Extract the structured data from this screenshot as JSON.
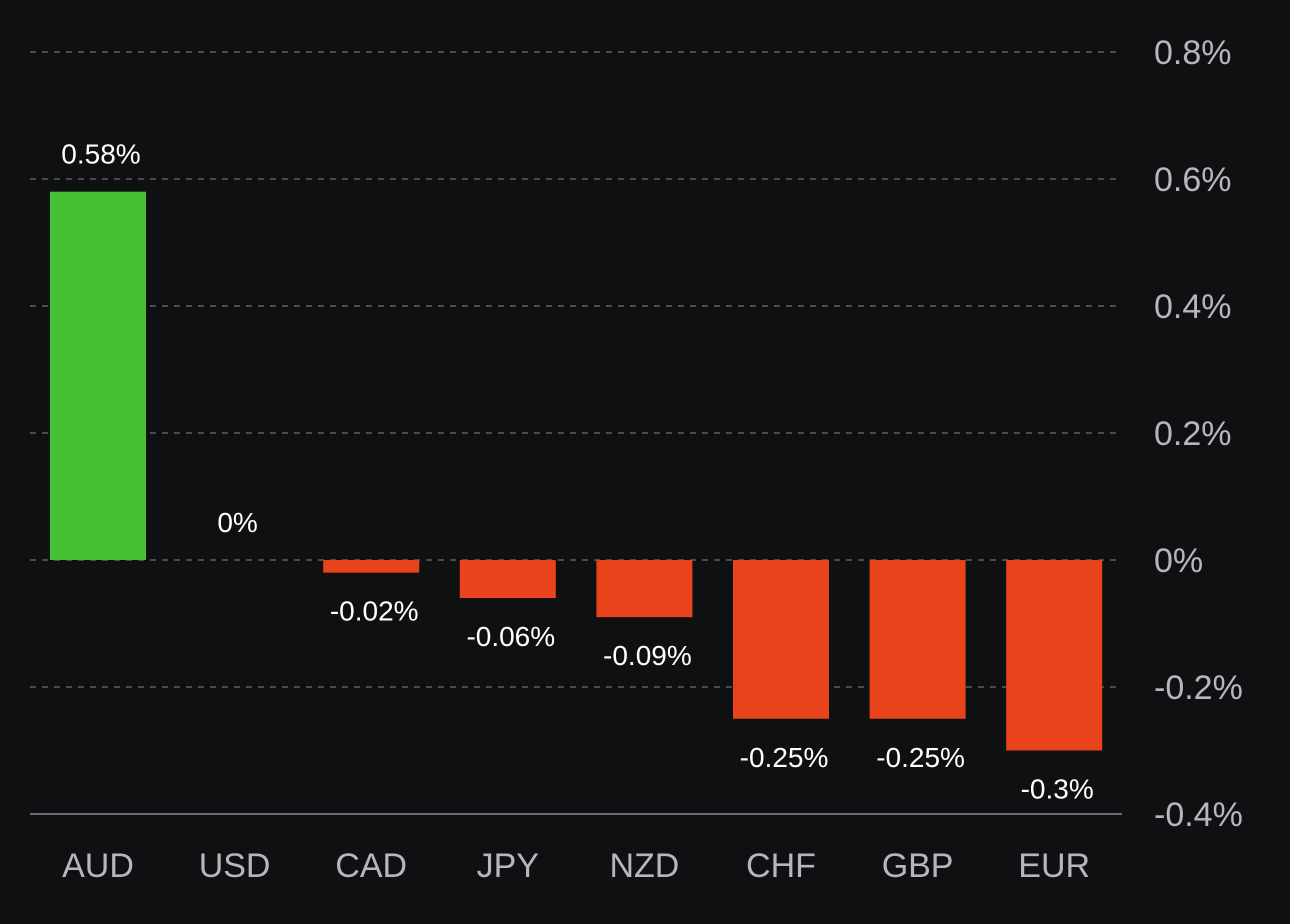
{
  "chart_data": {
    "type": "bar",
    "categories": [
      "AUD",
      "USD",
      "CAD",
      "JPY",
      "NZD",
      "CHF",
      "GBP",
      "EUR"
    ],
    "values": [
      0.58,
      0,
      -0.02,
      -0.06,
      -0.09,
      -0.25,
      -0.25,
      -0.3
    ],
    "data_labels": [
      "0.58%",
      "0%",
      "-0.02%",
      "-0.06%",
      "-0.09%",
      "-0.25%",
      "-0.25%",
      "-0.3%"
    ],
    "y_ticks": [
      0.8,
      0.6,
      0.4,
      0.2,
      0,
      -0.2,
      -0.4
    ],
    "y_tick_labels": [
      "0.8%",
      "0.6%",
      "0.4%",
      "0.2%",
      "0%",
      "-0.2%",
      "-0.4%"
    ],
    "ylim": [
      -0.4,
      0.8
    ],
    "grid": true,
    "y_axis_position": "right",
    "colors": {
      "positive": "#45c133",
      "negative": "#e8431b",
      "background": "#0f1012"
    }
  }
}
